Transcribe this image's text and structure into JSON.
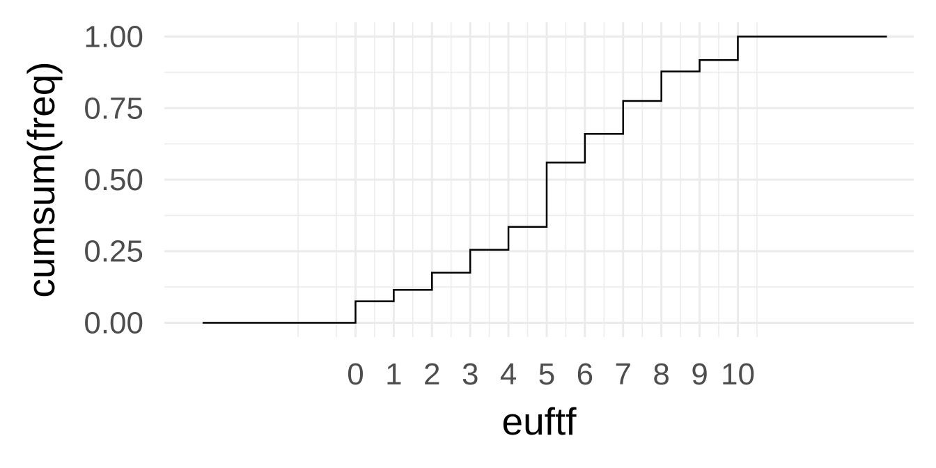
{
  "chart_data": {
    "type": "line",
    "subtype": "step",
    "title": "",
    "xlabel": "euftf",
    "ylabel": "cumsum(freq)",
    "x_ticks": [
      0,
      1,
      2,
      3,
      4,
      5,
      6,
      7,
      8,
      9,
      10
    ],
    "y_ticks": [
      0.0,
      0.25,
      0.5,
      0.75,
      1.0
    ],
    "y_tick_labels": [
      "0.00",
      "0.25",
      "0.50",
      "0.75",
      "1.00"
    ],
    "xlim": [
      -5,
      14.6
    ],
    "ylim": [
      -0.05,
      1.05
    ],
    "grid": true,
    "series": [
      {
        "x": [
          -4.0,
          0,
          1,
          2,
          3,
          4,
          5,
          6,
          7,
          8,
          9,
          10,
          13.9
        ],
        "y": [
          0.0,
          0.075,
          0.115,
          0.175,
          0.255,
          0.335,
          0.56,
          0.66,
          0.775,
          0.878,
          0.918,
          1.0,
          1.0
        ]
      }
    ]
  }
}
